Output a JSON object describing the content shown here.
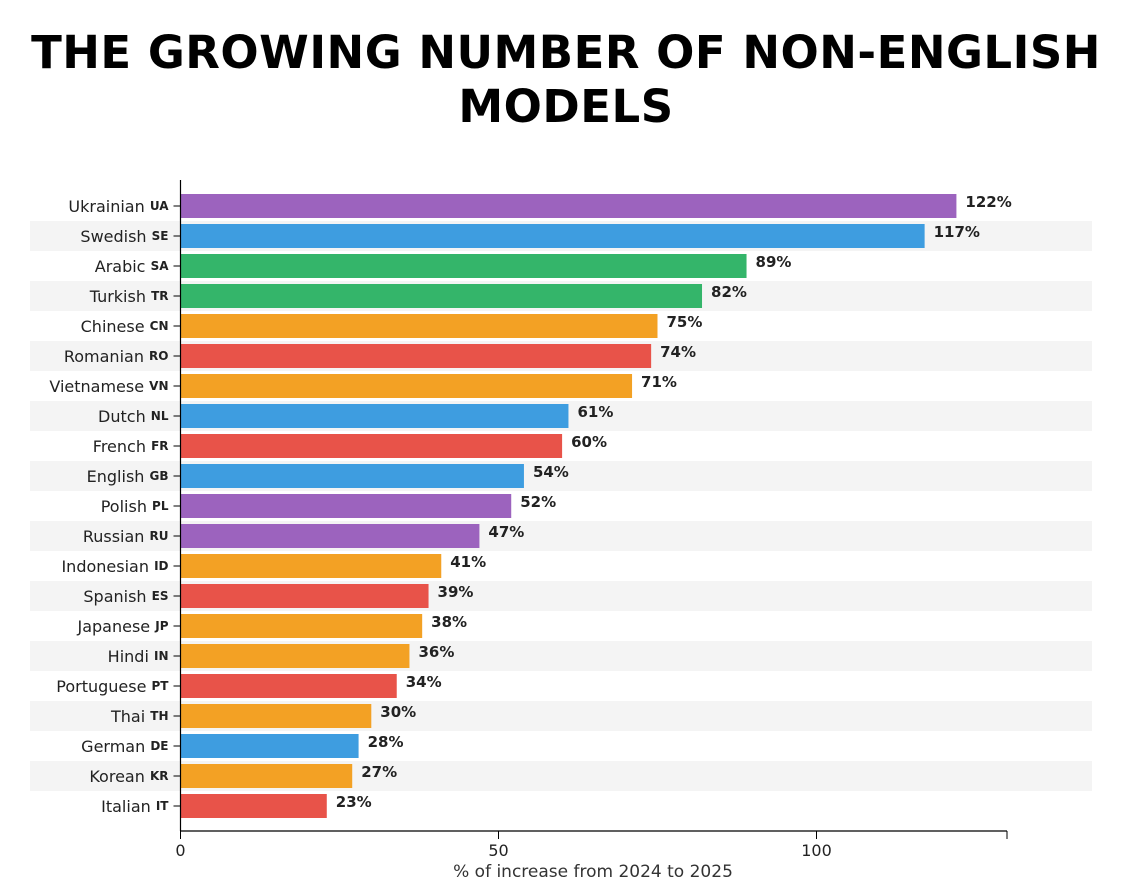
{
  "chart_data": {
    "type": "bar",
    "orientation": "horizontal",
    "title": "THE GROWING NUMBER OF NON-ENGLISH MODELS",
    "xlabel": "% of increase from 2024 to 2025",
    "ylabel": "",
    "xlim": [
      0,
      130
    ],
    "xticks": [
      "0",
      "50",
      "100"
    ],
    "grid": false,
    "legend": "none",
    "value_suffix": "%",
    "colors": {
      "purple": "#9c63be",
      "blue": "#3e9de0",
      "green": "#34b56a",
      "orange": "#f3a124",
      "red": "#e85349",
      "stripe": "#f4f4f4"
    },
    "categories": [
      {
        "label": "Ukrainian",
        "code": "UA",
        "value": 122,
        "color": "#9c63be"
      },
      {
        "label": "Swedish",
        "code": "SE",
        "value": 117,
        "color": "#3e9de0"
      },
      {
        "label": "Arabic",
        "code": "SA",
        "value": 89,
        "color": "#34b56a"
      },
      {
        "label": "Turkish",
        "code": "TR",
        "value": 82,
        "color": "#34b56a"
      },
      {
        "label": "Chinese",
        "code": "CN",
        "value": 75,
        "color": "#f3a124"
      },
      {
        "label": "Romanian",
        "code": "RO",
        "value": 74,
        "color": "#e85349"
      },
      {
        "label": "Vietnamese",
        "code": "VN",
        "value": 71,
        "color": "#f3a124"
      },
      {
        "label": "Dutch",
        "code": "NL",
        "value": 61,
        "color": "#3e9de0"
      },
      {
        "label": "French",
        "code": "FR",
        "value": 60,
        "color": "#e85349"
      },
      {
        "label": "English",
        "code": "GB",
        "value": 54,
        "color": "#3e9de0"
      },
      {
        "label": "Polish",
        "code": "PL",
        "value": 52,
        "color": "#9c63be"
      },
      {
        "label": "Russian",
        "code": "RU",
        "value": 47,
        "color": "#9c63be"
      },
      {
        "label": "Indonesian",
        "code": "ID",
        "value": 41,
        "color": "#f3a124"
      },
      {
        "label": "Spanish",
        "code": "ES",
        "value": 39,
        "color": "#e85349"
      },
      {
        "label": "Japanese",
        "code": "JP",
        "value": 38,
        "color": "#f3a124"
      },
      {
        "label": "Hindi",
        "code": "IN",
        "value": 36,
        "color": "#f3a124"
      },
      {
        "label": "Portuguese",
        "code": "PT",
        "value": 34,
        "color": "#e85349"
      },
      {
        "label": "Thai",
        "code": "TH",
        "value": 30,
        "color": "#f3a124"
      },
      {
        "label": "German",
        "code": "DE",
        "value": 28,
        "color": "#3e9de0"
      },
      {
        "label": "Korean",
        "code": "KR",
        "value": 27,
        "color": "#f3a124"
      },
      {
        "label": "Italian",
        "code": "IT",
        "value": 23,
        "color": "#e85349"
      }
    ]
  }
}
